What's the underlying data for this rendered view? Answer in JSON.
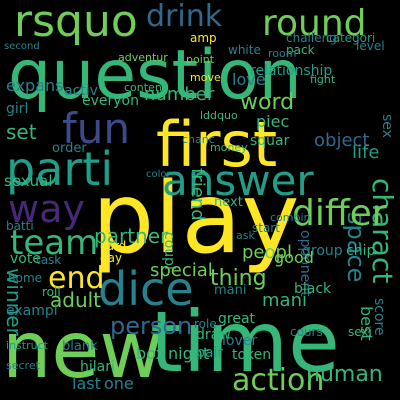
{
  "palette": {
    "background": "#000000",
    "yellow": "#fde725",
    "lime": "#b5de2b",
    "green": "#6ece58",
    "teal": "#35b779",
    "cyan": "#1f9e89",
    "blue": "#26828e",
    "indigo": "#31688e",
    "purple": "#3e4989",
    "dark": "#482878",
    "deep": "#440154"
  },
  "words": [
    {
      "text": "rsquo",
      "color": "#6ece58"
    },
    {
      "text": "question",
      "color": "#35b779"
    },
    {
      "text": "first",
      "color": "#fde725"
    },
    {
      "text": "play",
      "color": "#fde725"
    },
    {
      "text": "new",
      "color": "#6ece58"
    },
    {
      "text": "time",
      "color": "#35b779"
    },
    {
      "text": "parti",
      "color": "#1f9e89"
    },
    {
      "text": "answer",
      "color": "#1f9e89"
    },
    {
      "text": "drink",
      "color": "#31688e"
    },
    {
      "text": "round",
      "color": "#6ece58"
    },
    {
      "text": "fun",
      "color": "#3e4989"
    },
    {
      "text": "friend",
      "color": "#35b779"
    },
    {
      "text": "space",
      "color": "#26828e"
    },
    {
      "text": "charact",
      "color": "#35b779"
    },
    {
      "text": "differ",
      "color": "#6ece58"
    },
    {
      "text": "dice",
      "color": "#26828e"
    },
    {
      "text": "team",
      "color": "#35b779"
    },
    {
      "text": "way",
      "color": "#482878"
    },
    {
      "text": "winner",
      "color": "#1f9e89"
    },
    {
      "text": "end",
      "color": "#fde725"
    },
    {
      "text": "person",
      "color": "#31688e"
    },
    {
      "text": "action",
      "color": "#6ece58"
    },
    {
      "text": "human",
      "color": "#35b779"
    },
    {
      "text": "thing",
      "color": "#6ece58"
    },
    {
      "text": "word",
      "color": "#6ece58"
    },
    {
      "text": "number",
      "color": "#35b779"
    },
    {
      "text": "set",
      "color": "#35b779"
    },
    {
      "text": "adult",
      "color": "#6ece58"
    },
    {
      "text": "partner",
      "color": "#35b779"
    },
    {
      "text": "coupl",
      "color": "#35b779"
    },
    {
      "text": "expans",
      "color": "#26828e"
    },
    {
      "text": "activ",
      "color": "#26828e"
    },
    {
      "text": "everyon",
      "color": "#35b779"
    },
    {
      "text": "piec",
      "color": "#35b779"
    },
    {
      "text": "object",
      "color": "#31688e"
    },
    {
      "text": "life",
      "color": "#1f9e89"
    },
    {
      "text": "sex",
      "color": "#26828e"
    },
    {
      "text": "sexual",
      "color": "#35b779"
    },
    {
      "text": "batti",
      "color": "#26828e"
    },
    {
      "text": "love",
      "color": "#26828e"
    },
    {
      "text": "squar",
      "color": "#35b779"
    },
    {
      "text": "peopl",
      "color": "#6ece58"
    },
    {
      "text": "group",
      "color": "#26828e"
    },
    {
      "text": "chip",
      "color": "#35b779"
    },
    {
      "text": "special",
      "color": "#6ece58"
    },
    {
      "text": "mani",
      "color": "#35b779"
    },
    {
      "text": "box",
      "color": "#35b779"
    },
    {
      "text": "night",
      "color": "#35b779"
    },
    {
      "text": "last",
      "color": "#26828e"
    },
    {
      "text": "one",
      "color": "#26828e"
    },
    {
      "text": "opponent",
      "color": "#31688e"
    },
    {
      "text": "best",
      "color": "#35b779"
    },
    {
      "text": "score",
      "color": "#26828e"
    },
    {
      "text": "good",
      "color": "#6ece58"
    },
    {
      "text": "black",
      "color": "#35b779"
    },
    {
      "text": "vote",
      "color": "#35b779"
    },
    {
      "text": "task",
      "color": "#26828e"
    },
    {
      "text": "mani",
      "color": "#26828e"
    },
    {
      "text": "draw",
      "color": "#35b779"
    },
    {
      "text": "pair",
      "color": "#1f9e89"
    },
    {
      "text": "token",
      "color": "#35b779"
    },
    {
      "text": "lover",
      "color": "#26828e"
    },
    {
      "text": "great",
      "color": "#35b779"
    },
    {
      "text": "role",
      "color": "#26828e"
    },
    {
      "text": "hilari",
      "color": "#35b779"
    },
    {
      "text": "blank",
      "color": "#26828e"
    },
    {
      "text": "exampl",
      "color": "#26828e"
    },
    {
      "text": "girl",
      "color": "#26828e"
    },
    {
      "text": "order",
      "color": "#26828e"
    },
    {
      "text": "home",
      "color": "#26828e"
    },
    {
      "text": "roll",
      "color": "#35b779"
    },
    {
      "text": "relationship",
      "color": "#1f9e89"
    },
    {
      "text": "level",
      "color": "#26828e"
    },
    {
      "text": "challeng",
      "color": "#26828e"
    },
    {
      "text": "categori",
      "color": "#1f9e89"
    },
    {
      "text": "pack",
      "color": "#35b779"
    },
    {
      "text": "white",
      "color": "#26828e"
    },
    {
      "text": "room",
      "color": "#26828e"
    },
    {
      "text": "amp",
      "color": "#fde725"
    },
    {
      "text": "second",
      "color": "#26828e"
    },
    {
      "text": "color",
      "color": "#26828e"
    },
    {
      "text": "card",
      "color": "#fde725"
    },
    {
      "text": "day",
      "color": "#fde725"
    },
    {
      "text": "start",
      "color": "#26828e"
    },
    {
      "text": "ask",
      "color": "#26828e"
    },
    {
      "text": "fight",
      "color": "#35b779"
    },
    {
      "text": "chanc",
      "color": "#26828e"
    },
    {
      "text": "money",
      "color": "#35b779"
    },
    {
      "text": "instruct",
      "color": "#1f9e89"
    },
    {
      "text": "lddquo",
      "color": "#35b779"
    },
    {
      "text": "secret",
      "color": "#26828e"
    },
    {
      "text": "next",
      "color": "#35b779"
    },
    {
      "text": "cours",
      "color": "#26828e"
    },
    {
      "text": "sexi",
      "color": "#35b779"
    },
    {
      "text": "combin",
      "color": "#26828e"
    },
    {
      "text": "move",
      "color": "#fde725"
    },
    {
      "text": "content",
      "color": "#35b779"
    },
    {
      "text": "adventur",
      "color": "#6ece58"
    },
    {
      "text": "point",
      "color": "#6ece58"
    }
  ]
}
